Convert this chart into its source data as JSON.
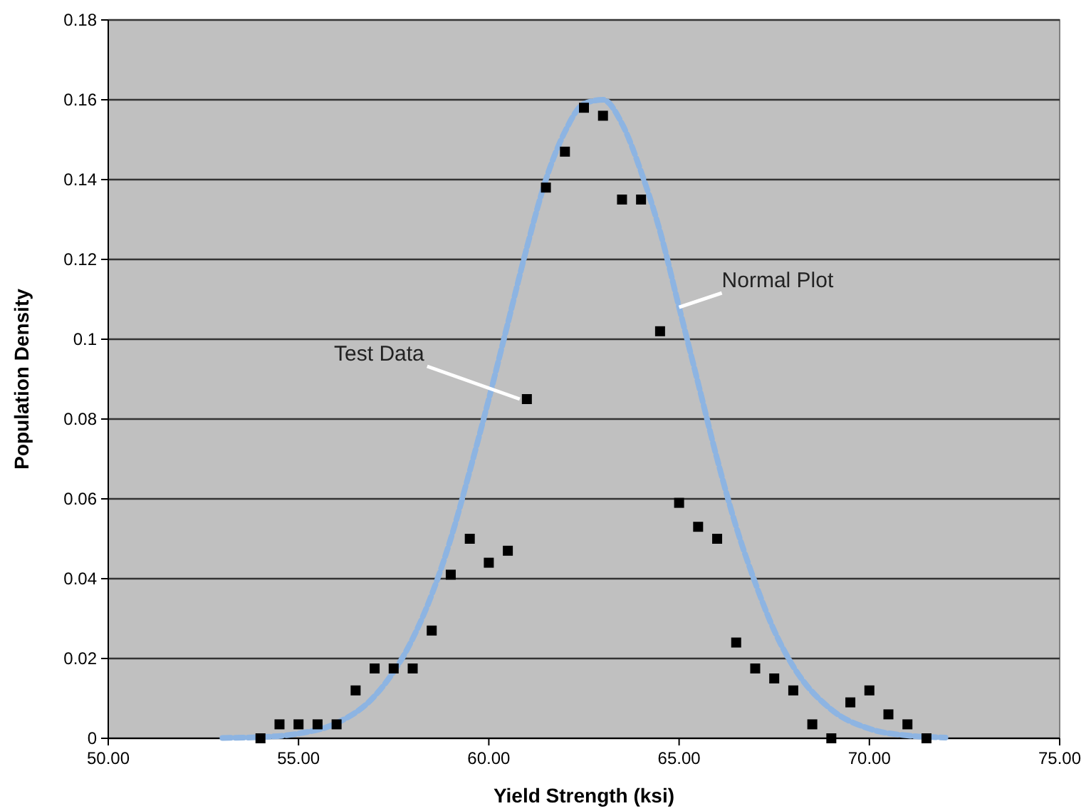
{
  "chart_data": {
    "type": "scatter",
    "xlabel": "Yield Strength (ksi)",
    "ylabel": "Population Density",
    "xlim": [
      50,
      75
    ],
    "xticks": [
      {
        "value": 50,
        "label": "50.00"
      },
      {
        "value": 55,
        "label": "55.00"
      },
      {
        "value": 60,
        "label": "60.00"
      },
      {
        "value": 65,
        "label": "65.00"
      },
      {
        "value": 70,
        "label": "70.00"
      },
      {
        "value": 75,
        "label": "75.00"
      }
    ],
    "ylim": [
      0,
      0.18
    ],
    "yticks": [
      0,
      0.02,
      0.04,
      0.06,
      0.08,
      0.1,
      0.12,
      0.14,
      0.16,
      0.18
    ],
    "grid": "y",
    "series": [
      {
        "type": "line",
        "name": "Normal Plot",
        "color": "#8db4e2",
        "line_style": "dashed",
        "marker": "none",
        "x": [
          53,
          54,
          55,
          56,
          57,
          58,
          58.5,
          59,
          59.5,
          60,
          60.5,
          61,
          61.5,
          62,
          62.5,
          63,
          63.5,
          64,
          64.5,
          65,
          65.5,
          66,
          66.5,
          67,
          67.5,
          68,
          69,
          70,
          71,
          72
        ],
        "values": [
          0.0001,
          0.0003,
          0.0012,
          0.0038,
          0.0106,
          0.025,
          0.036,
          0.05,
          0.067,
          0.085,
          0.104,
          0.123,
          0.14,
          0.152,
          0.159,
          0.16,
          0.154,
          0.142,
          0.127,
          0.108,
          0.089,
          0.07,
          0.053,
          0.039,
          0.027,
          0.018,
          0.0072,
          0.0024,
          0.0007,
          0.0002
        ]
      },
      {
        "name": "Test Data",
        "color": "#000000",
        "marker": "square",
        "x": [
          54,
          54.5,
          55,
          55.5,
          56,
          56.5,
          57,
          57.5,
          58,
          58.5,
          59,
          59.5,
          60,
          60.5,
          61,
          61.5,
          62,
          62.5,
          63,
          63.5,
          64,
          64.5,
          65,
          65.5,
          66,
          66.5,
          67,
          67.5,
          68,
          68.5,
          69,
          69.5,
          70,
          70.5,
          71,
          71.5
        ],
        "values": [
          0,
          0.0035,
          0.0035,
          0.0035,
          0.0035,
          0.012,
          0.0175,
          0.0175,
          0.0175,
          0.027,
          0.041,
          0.05,
          0.044,
          0.047,
          0.085,
          0.138,
          0.147,
          0.158,
          0.156,
          0.135,
          0.135,
          0.102,
          0.059,
          0.053,
          0.05,
          0.024,
          0.0175,
          0.015,
          0.012,
          0.0035,
          0,
          0.009,
          0.012,
          0.006,
          0.0035,
          0
        ]
      }
    ]
  }
}
